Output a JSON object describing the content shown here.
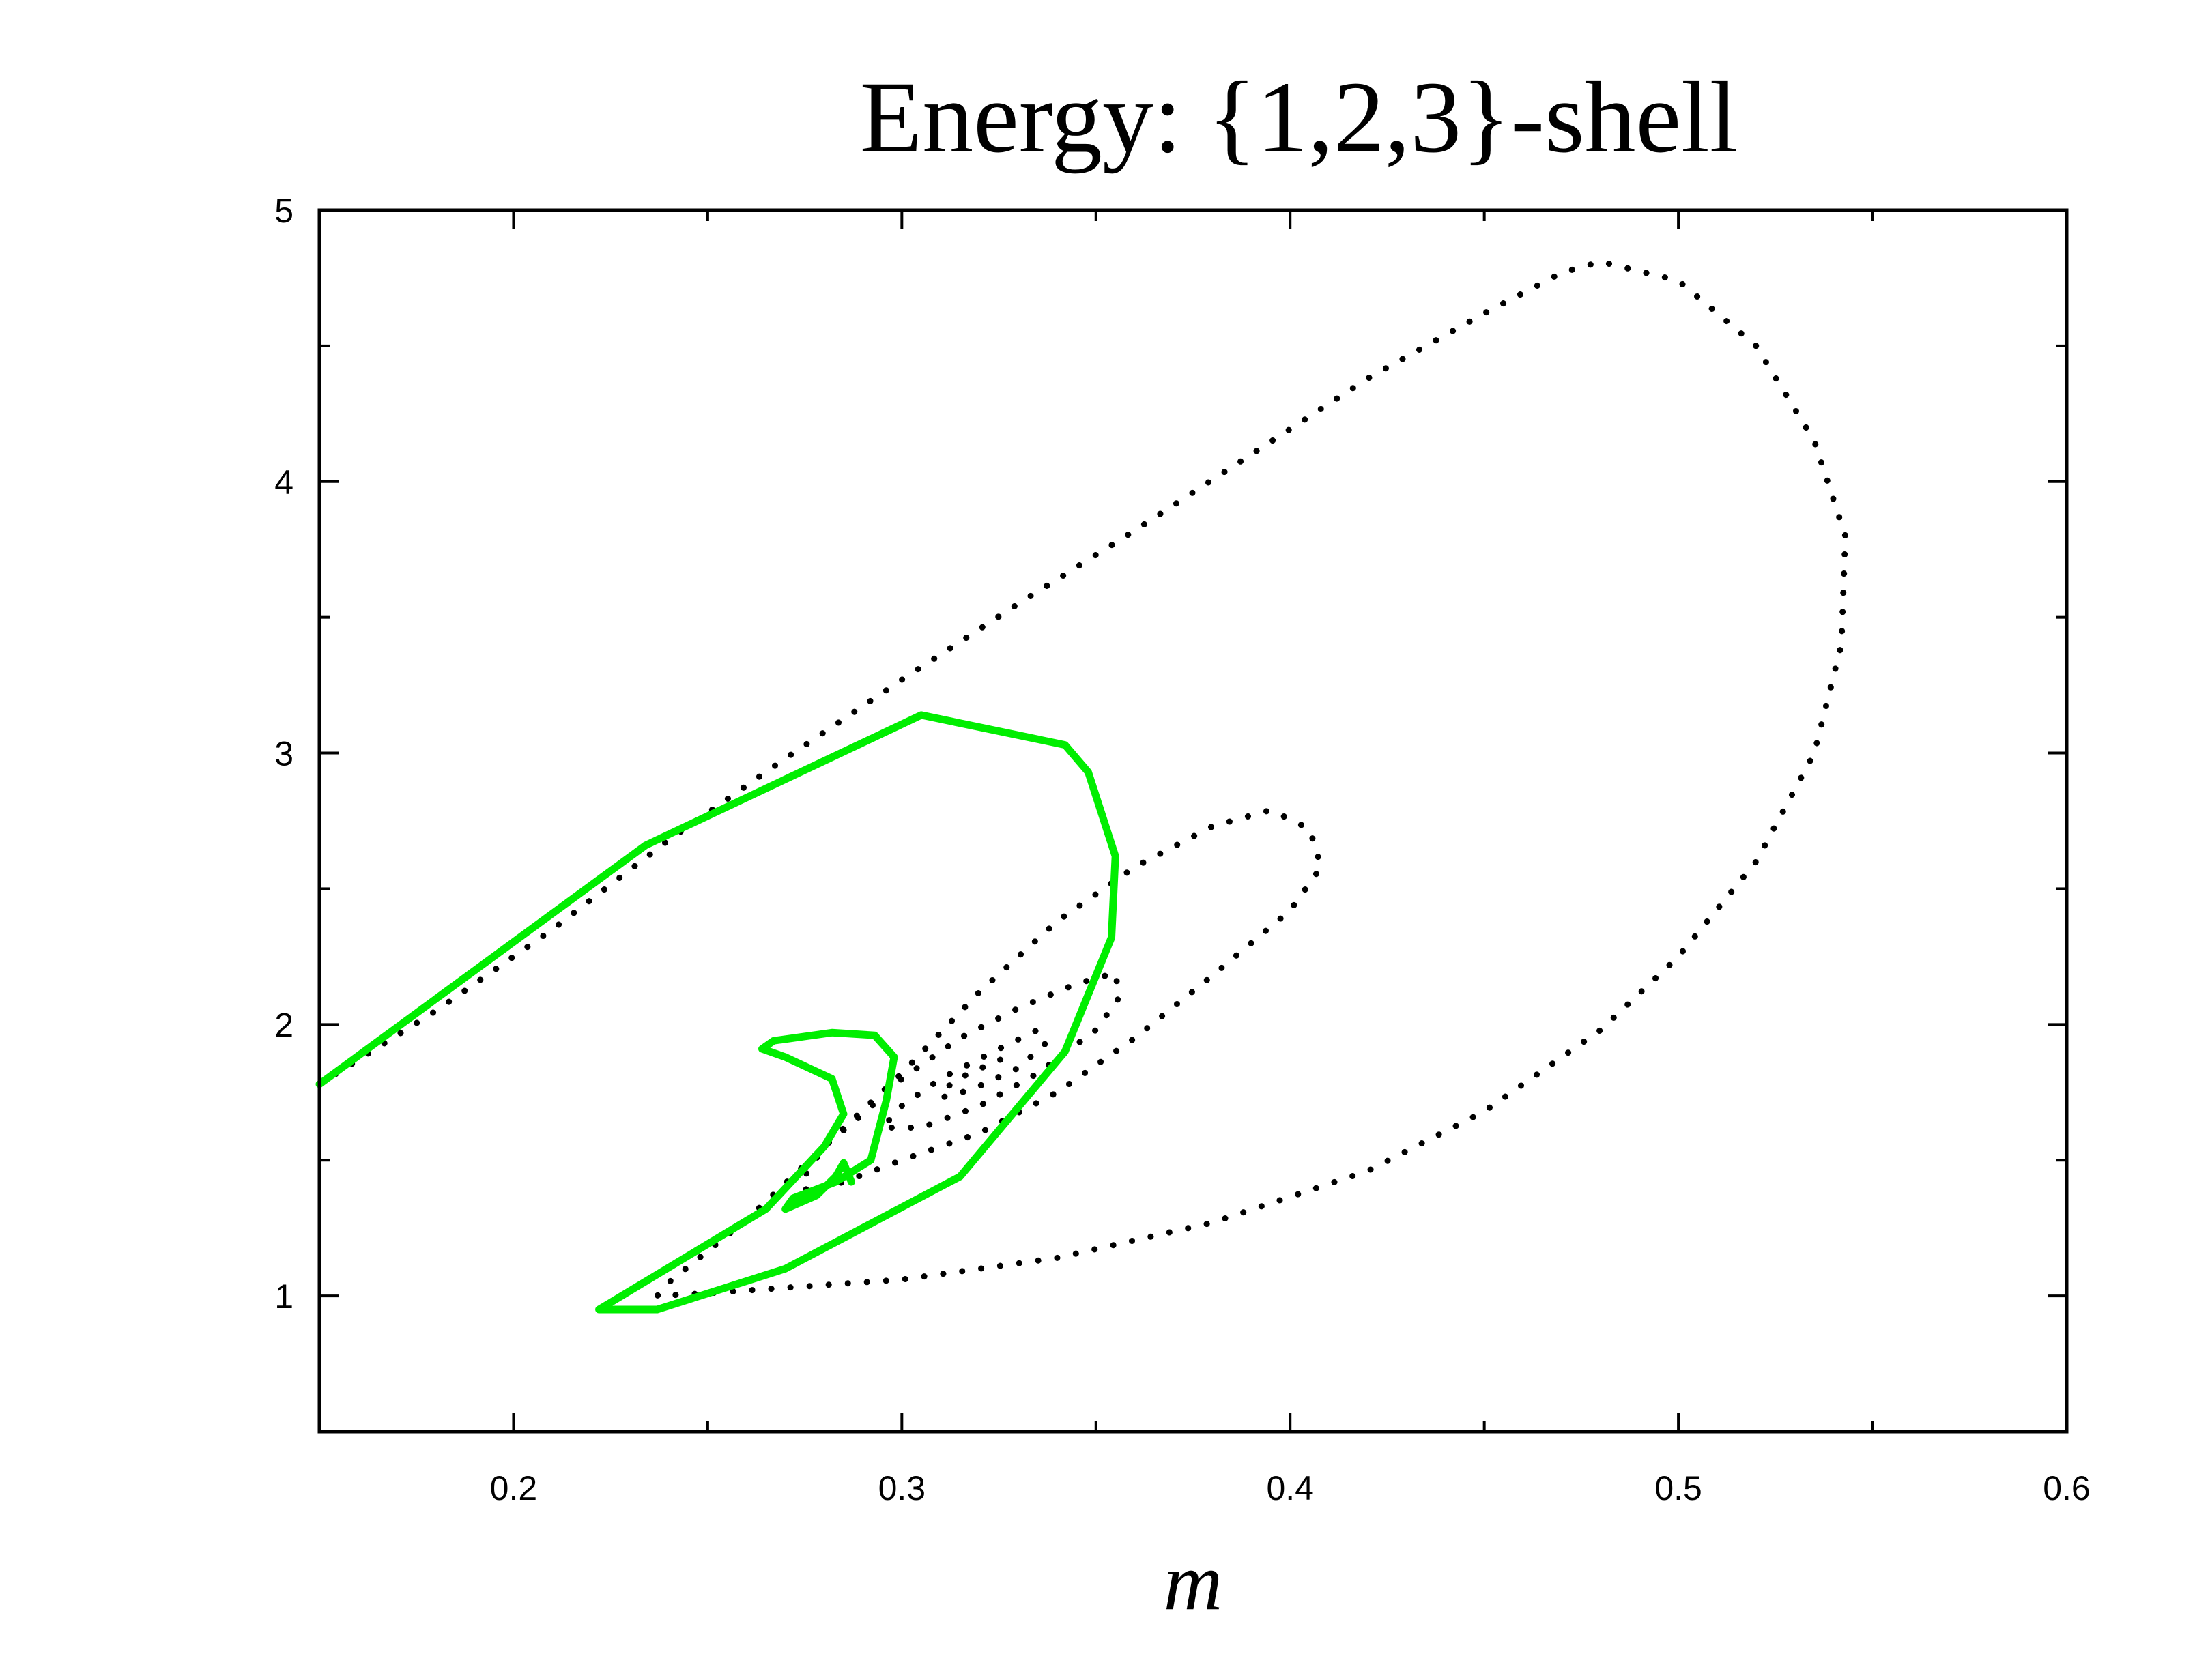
{
  "chart_data": {
    "type": "line",
    "title": "Energy: {1,2,3}-shell",
    "xlabel": "m",
    "ylabel": "",
    "xlim": [
      0.15,
      0.6
    ],
    "ylim": [
      0.5,
      5
    ],
    "x_ticks": [
      "0.2",
      "0.3",
      "0.4",
      "0.5",
      "0.6"
    ],
    "y_ticks": [
      "1",
      "2",
      "3",
      "4",
      "5"
    ],
    "grid": false,
    "legend": "none",
    "colors": {
      "dotted": "#000000",
      "solid": "#00ee00",
      "axes": "#000000"
    },
    "series": [
      {
        "style": "dotted",
        "color": "#000000",
        "points": [
          [
            0.15,
            1.78
          ],
          [
            0.18,
            2.05
          ],
          [
            0.21,
            2.35
          ],
          [
            0.24,
            2.68
          ],
          [
            0.27,
            2.98
          ],
          [
            0.3,
            3.27
          ],
          [
            0.33,
            3.55
          ],
          [
            0.36,
            3.82
          ],
          [
            0.39,
            4.1
          ],
          [
            0.42,
            4.38
          ],
          [
            0.45,
            4.62
          ],
          [
            0.47,
            4.77
          ],
          [
            0.48,
            4.81
          ],
          [
            0.5,
            4.74
          ],
          [
            0.52,
            4.5
          ],
          [
            0.535,
            4.15
          ],
          [
            0.543,
            3.8
          ],
          [
            0.542,
            3.4
          ],
          [
            0.535,
            3.0
          ],
          [
            0.52,
            2.6
          ],
          [
            0.5,
            2.25
          ],
          [
            0.48,
            1.98
          ],
          [
            0.45,
            1.68
          ],
          [
            0.42,
            1.46
          ],
          [
            0.38,
            1.27
          ],
          [
            0.34,
            1.14
          ],
          [
            0.3,
            1.06
          ],
          [
            0.27,
            1.03
          ],
          [
            0.25,
            1.01
          ],
          [
            0.237,
            1.0
          ],
          [
            0.24,
            1.05
          ],
          [
            0.26,
            1.28
          ],
          [
            0.28,
            1.55
          ],
          [
            0.3,
            1.82
          ],
          [
            0.32,
            2.12
          ],
          [
            0.34,
            2.38
          ],
          [
            0.36,
            2.58
          ],
          [
            0.38,
            2.73
          ],
          [
            0.395,
            2.79
          ],
          [
            0.405,
            2.72
          ],
          [
            0.408,
            2.58
          ],
          [
            0.4,
            2.42
          ],
          [
            0.38,
            2.18
          ],
          [
            0.36,
            1.95
          ],
          [
            0.34,
            1.75
          ],
          [
            0.32,
            1.6
          ],
          [
            0.3,
            1.5
          ],
          [
            0.285,
            1.42
          ],
          [
            0.276,
            1.38
          ],
          [
            0.274,
            1.42
          ],
          [
            0.28,
            1.55
          ],
          [
            0.29,
            1.67
          ],
          [
            0.3,
            1.8
          ],
          [
            0.315,
            1.95
          ],
          [
            0.33,
            2.06
          ],
          [
            0.345,
            2.15
          ],
          [
            0.355,
            2.19
          ],
          [
            0.356,
            2.1
          ],
          [
            0.35,
            1.98
          ],
          [
            0.335,
            1.82
          ],
          [
            0.32,
            1.7
          ],
          [
            0.305,
            1.62
          ],
          [
            0.295,
            1.62
          ],
          [
            0.3,
            1.7
          ],
          [
            0.31,
            1.8
          ],
          [
            0.325,
            1.91
          ],
          [
            0.335,
            1.98
          ],
          [
            0.337,
            1.93
          ],
          [
            0.33,
            1.84
          ],
          [
            0.318,
            1.76
          ],
          [
            0.31,
            1.73
          ],
          [
            0.313,
            1.79
          ],
          [
            0.322,
            1.85
          ],
          [
            0.327,
            1.88
          ]
        ]
      },
      {
        "style": "solid",
        "color": "#00ee00",
        "points": [
          [
            0.15,
            1.78
          ],
          [
            0.234,
            2.66
          ],
          [
            0.305,
            3.14
          ],
          [
            0.342,
            3.03
          ],
          [
            0.348,
            2.93
          ],
          [
            0.355,
            2.62
          ],
          [
            0.354,
            2.32
          ],
          [
            0.342,
            1.9
          ],
          [
            0.315,
            1.44
          ],
          [
            0.27,
            1.1
          ],
          [
            0.237,
            0.95
          ],
          [
            0.222,
            0.95
          ],
          [
            0.265,
            1.32
          ],
          [
            0.28,
            1.55
          ],
          [
            0.285,
            1.67
          ],
          [
            0.282,
            1.8
          ],
          [
            0.27,
            1.88
          ],
          [
            0.264,
            1.91
          ],
          [
            0.267,
            1.94
          ],
          [
            0.282,
            1.97
          ],
          [
            0.293,
            1.96
          ],
          [
            0.298,
            1.88
          ],
          [
            0.296,
            1.72
          ],
          [
            0.292,
            1.5
          ],
          [
            0.283,
            1.42
          ],
          [
            0.272,
            1.36
          ],
          [
            0.27,
            1.32
          ],
          [
            0.278,
            1.37
          ],
          [
            0.283,
            1.44
          ],
          [
            0.285,
            1.49
          ],
          [
            0.287,
            1.42
          ]
        ]
      }
    ]
  }
}
